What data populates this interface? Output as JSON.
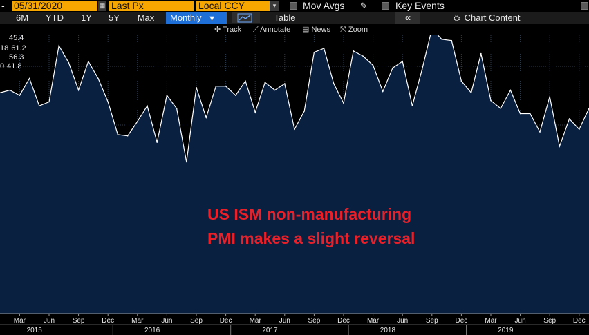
{
  "header": {
    "date": "05/31/2020",
    "price_field": "Last Px",
    "currency": "Local CCY",
    "mov_avgs_label": "Mov Avgs",
    "key_events_label": "Key Events"
  },
  "periods": [
    "6M",
    "YTD",
    "1Y",
    "5Y",
    "Max"
  ],
  "frequency": "Monthly",
  "table_label": "Table",
  "chart_content_label": "Chart Content",
  "tools": {
    "track": "Track",
    "annotate": "Annotate",
    "news": "News",
    "zoom": "Zoom"
  },
  "legend_values": [
    {
      "prefix": "",
      "value": "45.4"
    },
    {
      "prefix": "18",
      "value": "61.2"
    },
    {
      "prefix": "",
      "value": "56.3"
    },
    {
      "prefix": "0",
      "value": "41.8"
    }
  ],
  "annotation": {
    "line1": "US ISM non-manufacturing",
    "line2": "PMI makes a slight reversal"
  },
  "colors": {
    "accent_orange": "#f7a600",
    "active_blue": "#1f6fd8",
    "area_fill": "#0a2040",
    "line": "#ffffff",
    "annotation_red": "#e8202a"
  },
  "chart_data": {
    "type": "area",
    "frequency": "monthly",
    "x_start": "2015-01",
    "x_end": "2020-01",
    "ylim": [
      40,
      61
    ],
    "grid": true,
    "x_month_ticks": [
      "Mar",
      "Jun",
      "Sep",
      "Dec",
      "Mar",
      "Jun",
      "Sep",
      "Dec",
      "Mar",
      "Jun",
      "Sep",
      "Dec",
      "Mar",
      "Jun",
      "Sep",
      "Dec",
      "Mar",
      "Jun",
      "Sep",
      "Dec"
    ],
    "x_year_labels": [
      "2015",
      "2016",
      "2017",
      "2018",
      "2019"
    ],
    "values": [
      56.7,
      56.9,
      56.5,
      57.8,
      55.7,
      56.0,
      60.3,
      59.0,
      56.9,
      59.1,
      57.8,
      56.0,
      53.5,
      53.4,
      54.5,
      55.7,
      52.9,
      56.5,
      55.5,
      51.4,
      57.1,
      54.8,
      57.2,
      57.2,
      56.5,
      57.6,
      55.2,
      57.5,
      56.9,
      57.4,
      53.9,
      55.3,
      59.8,
      60.1,
      57.4,
      55.9,
      59.9,
      59.5,
      58.8,
      56.8,
      58.6,
      59.1,
      55.7,
      58.5,
      61.6,
      60.8,
      60.7,
      57.6,
      56.7,
      59.7,
      56.1,
      55.5,
      56.9,
      55.1,
      55.1,
      53.7,
      56.4,
      52.6,
      54.7,
      53.9,
      55.5
    ]
  }
}
